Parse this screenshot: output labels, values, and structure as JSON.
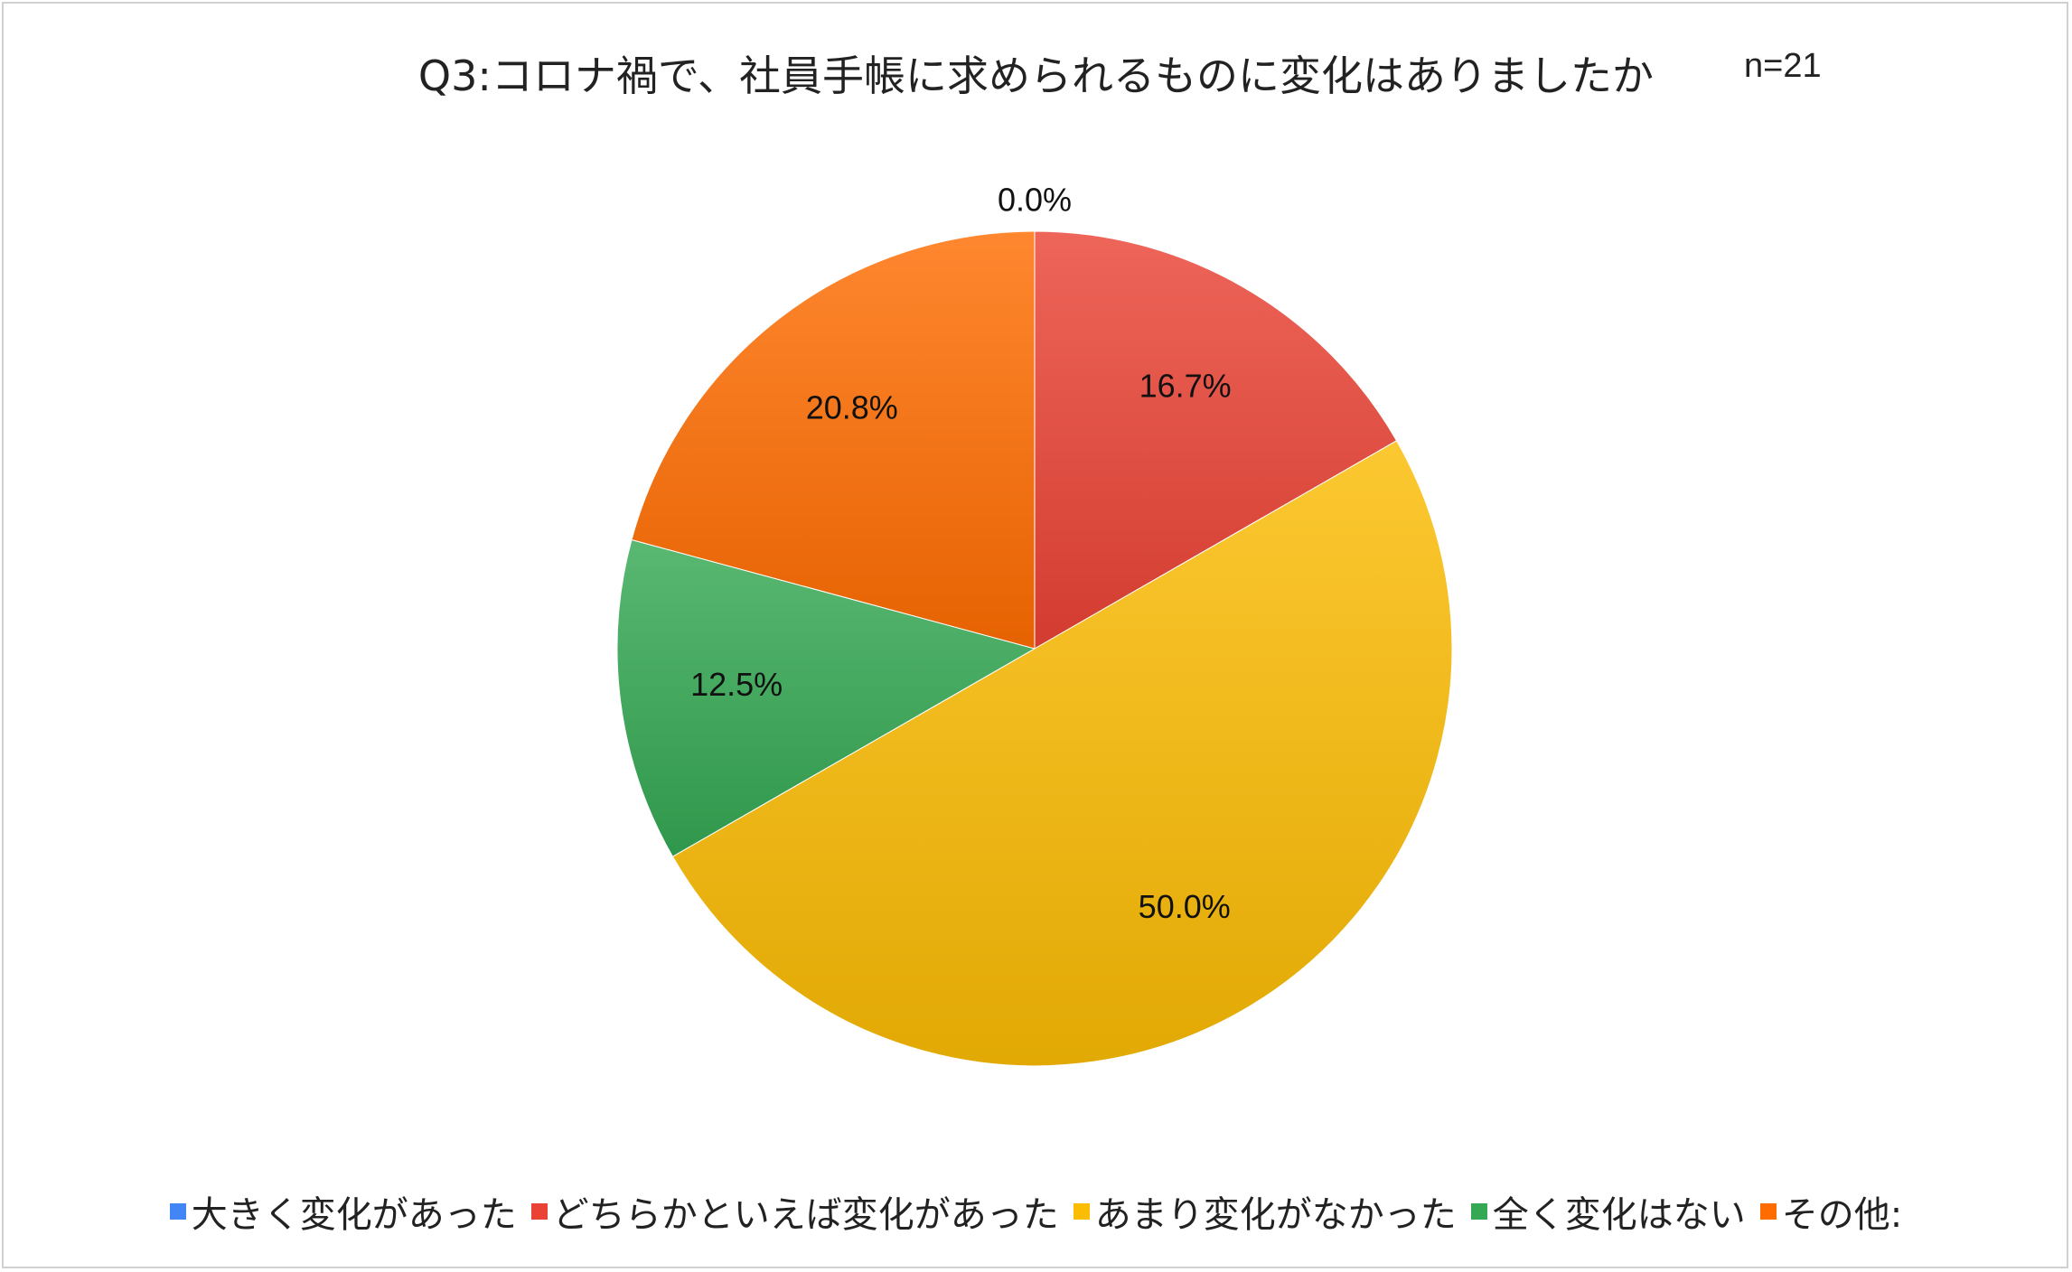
{
  "chart_data": {
    "type": "pie",
    "title": "Q3:コロナ禍で、社員手帳に求められるものに変化はありましたか",
    "sample_size": "n=21",
    "legend_position": "bottom",
    "slices": [
      {
        "name": "大きく変化があった",
        "value": 0.0,
        "label": "0.0%",
        "color": "#4285f4"
      },
      {
        "name": "どちらかといえば変化があった",
        "value": 16.7,
        "label": "16.7%",
        "color": "#ea4335"
      },
      {
        "name": "あまり変化がなかった",
        "value": 50.0,
        "label": "50.0%",
        "color": "#fbbc04"
      },
      {
        "name": "全く変化はない",
        "value": 12.5,
        "label": "12.5%",
        "color": "#34a853"
      },
      {
        "name": "その他:",
        "value": 20.8,
        "label": "20.8%",
        "color": "#ff6d01"
      }
    ]
  }
}
